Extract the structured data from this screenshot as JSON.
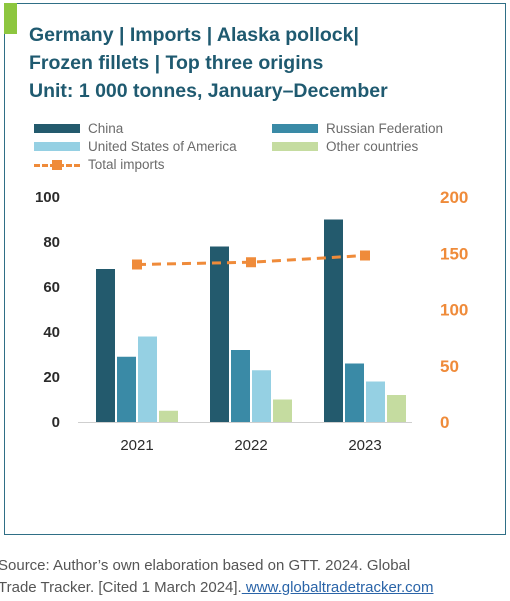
{
  "title_lines": [
    "Germany | Imports | Alaska pollock|",
    "Frozen fillets | Top three origins",
    "Unit: 1 000 tonnes, January–December"
  ],
  "source": {
    "line1": "Source: Author’s own elaboration based on GTT. 2024. Global",
    "line2": "Trade Tracker. [Cited 1 March 2024].",
    "link": " www.globaltradetracker.com"
  },
  "colors": {
    "china": "#235a6d",
    "russia": "#3a8aa6",
    "usa": "#95d0e3",
    "other": "#c5dca0",
    "total": "#ef8b3a",
    "accent": "#8dc63f",
    "border": "#2f6f86"
  },
  "chart_data": {
    "type": "bar",
    "categories": [
      "2021",
      "2022",
      "2023"
    ],
    "series": [
      {
        "name": "China",
        "values": [
          68,
          78,
          90
        ]
      },
      {
        "name": "Russian Federation",
        "values": [
          29,
          32,
          26
        ]
      },
      {
        "name": "United States of America",
        "values": [
          38,
          23,
          18
        ]
      },
      {
        "name": "Other countries",
        "values": [
          5,
          10,
          12
        ]
      }
    ],
    "line_series": {
      "name": "Total imports",
      "axis": "right",
      "values": [
        140,
        142,
        148
      ]
    },
    "y_left": {
      "ylim": [
        0,
        100
      ],
      "ticks": [
        "0",
        "20",
        "40",
        "60",
        "80",
        "100"
      ]
    },
    "y_right": {
      "ylim": [
        0,
        200
      ],
      "ticks": [
        "0",
        "50",
        "100",
        "150",
        "200"
      ]
    },
    "legend_position": "top",
    "grid": false
  }
}
